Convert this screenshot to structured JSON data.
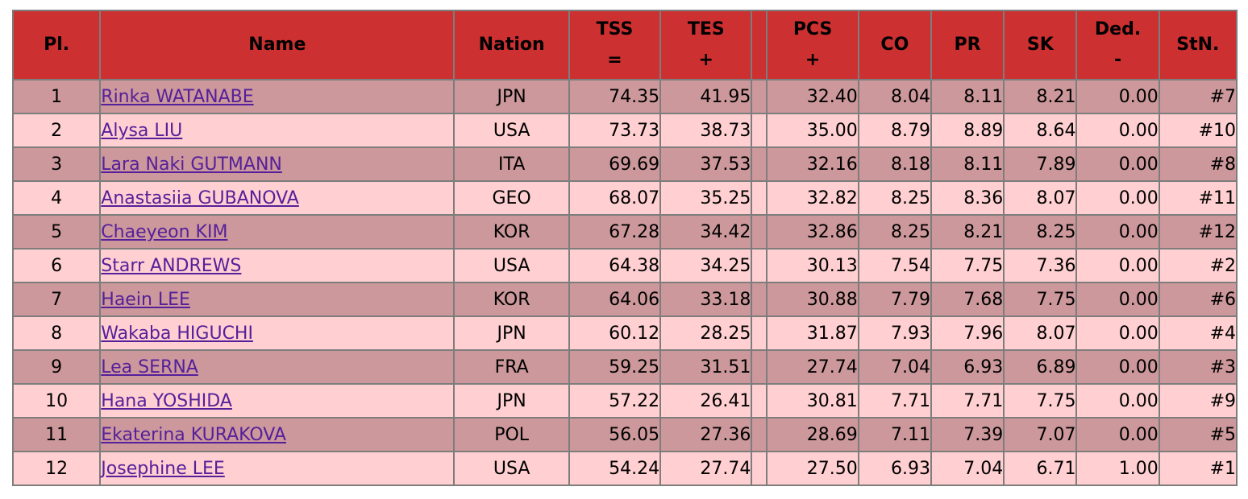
{
  "table": {
    "headers": {
      "pl": "Pl.",
      "name": "Name",
      "nation": "Nation",
      "tss": "TSS",
      "tss_sym": "=",
      "tes": "TES",
      "tes_sym": "+",
      "pcs": "PCS",
      "pcs_sym": "+",
      "co": "CO",
      "pr": "PR",
      "sk": "SK",
      "ded": "Ded.",
      "ded_sym": "-",
      "stn": "StN."
    },
    "rows": [
      {
        "pl": "1",
        "name": "Rinka WATANABE",
        "nation": "JPN",
        "tss": "74.35",
        "tes": "41.95",
        "pcs": "32.40",
        "co": "8.04",
        "pr": "8.11",
        "sk": "8.21",
        "ded": "0.00",
        "stn": "#7"
      },
      {
        "pl": "2",
        "name": "Alysa LIU",
        "nation": "USA",
        "tss": "73.73",
        "tes": "38.73",
        "pcs": "35.00",
        "co": "8.79",
        "pr": "8.89",
        "sk": "8.64",
        "ded": "0.00",
        "stn": "#10"
      },
      {
        "pl": "3",
        "name": "Lara Naki GUTMANN",
        "nation": "ITA",
        "tss": "69.69",
        "tes": "37.53",
        "pcs": "32.16",
        "co": "8.18",
        "pr": "8.11",
        "sk": "7.89",
        "ded": "0.00",
        "stn": "#8"
      },
      {
        "pl": "4",
        "name": "Anastasiia GUBANOVA",
        "nation": "GEO",
        "tss": "68.07",
        "tes": "35.25",
        "pcs": "32.82",
        "co": "8.25",
        "pr": "8.36",
        "sk": "8.07",
        "ded": "0.00",
        "stn": "#11"
      },
      {
        "pl": "5",
        "name": "Chaeyeon KIM",
        "nation": "KOR",
        "tss": "67.28",
        "tes": "34.42",
        "pcs": "32.86",
        "co": "8.25",
        "pr": "8.21",
        "sk": "8.25",
        "ded": "0.00",
        "stn": "#12"
      },
      {
        "pl": "6",
        "name": "Starr ANDREWS",
        "nation": "USA",
        "tss": "64.38",
        "tes": "34.25",
        "pcs": "30.13",
        "co": "7.54",
        "pr": "7.75",
        "sk": "7.36",
        "ded": "0.00",
        "stn": "#2"
      },
      {
        "pl": "7",
        "name": "Haein LEE",
        "nation": "KOR",
        "tss": "64.06",
        "tes": "33.18",
        "pcs": "30.88",
        "co": "7.79",
        "pr": "7.68",
        "sk": "7.75",
        "ded": "0.00",
        "stn": "#6"
      },
      {
        "pl": "8",
        "name": "Wakaba HIGUCHI",
        "nation": "JPN",
        "tss": "60.12",
        "tes": "28.25",
        "pcs": "31.87",
        "co": "7.93",
        "pr": "7.96",
        "sk": "8.07",
        "ded": "0.00",
        "stn": "#4"
      },
      {
        "pl": "9",
        "name": "Lea SERNA",
        "nation": "FRA",
        "tss": "59.25",
        "tes": "31.51",
        "pcs": "27.74",
        "co": "7.04",
        "pr": "6.93",
        "sk": "6.89",
        "ded": "0.00",
        "stn": "#3"
      },
      {
        "pl": "10",
        "name": "Hana YOSHIDA",
        "nation": "JPN",
        "tss": "57.22",
        "tes": "26.41",
        "pcs": "30.81",
        "co": "7.71",
        "pr": "7.71",
        "sk": "7.75",
        "ded": "0.00",
        "stn": "#9"
      },
      {
        "pl": "11",
        "name": "Ekaterina KURAKOVA",
        "nation": "POL",
        "tss": "56.05",
        "tes": "27.36",
        "pcs": "28.69",
        "co": "7.11",
        "pr": "7.39",
        "sk": "7.07",
        "ded": "0.00",
        "stn": "#5"
      },
      {
        "pl": "12",
        "name": "Josephine LEE",
        "nation": "USA",
        "tss": "54.24",
        "tes": "27.74",
        "pcs": "27.50",
        "co": "6.93",
        "pr": "7.04",
        "sk": "6.71",
        "ded": "1.00",
        "stn": "#1"
      }
    ]
  },
  "colors": {
    "header_bg": "#cc3030",
    "row_odd": "#cc989b",
    "row_even": "#ffcfd1",
    "link": "#55209a",
    "grid": "#7d7d7d"
  }
}
